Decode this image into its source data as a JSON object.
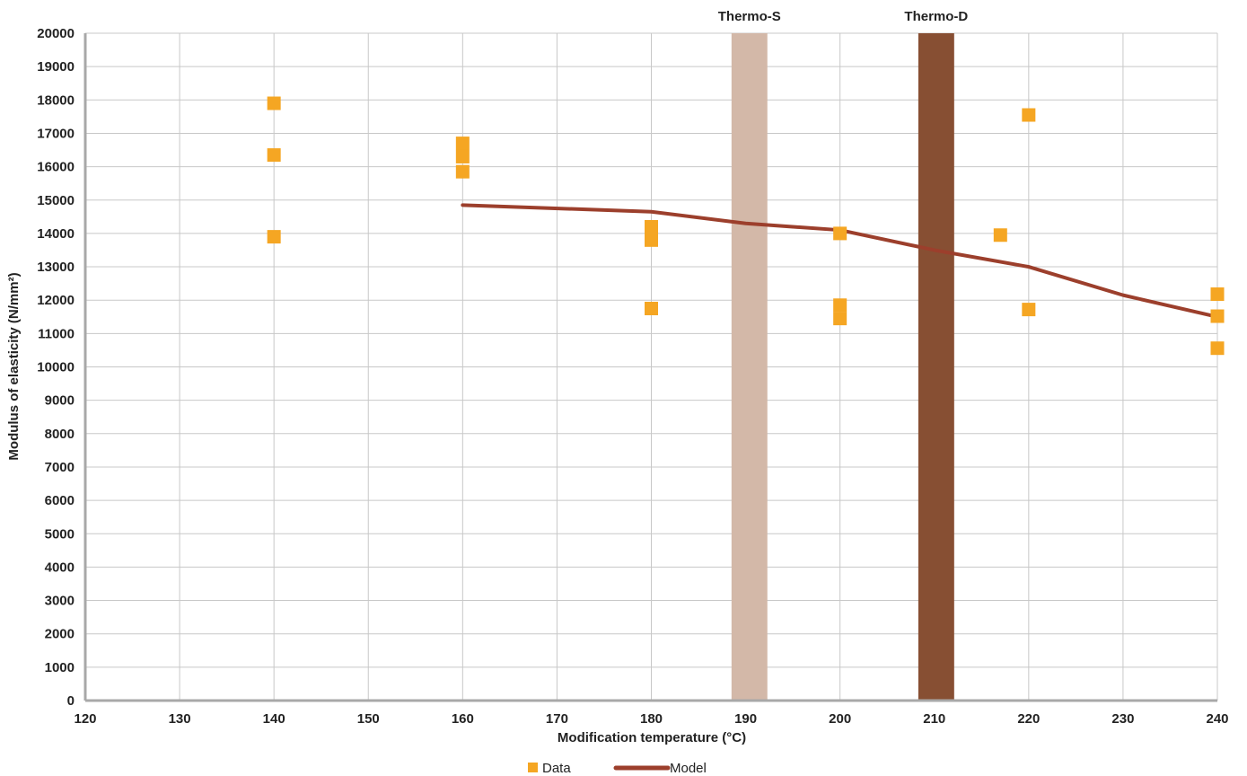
{
  "chart_data": {
    "type": "scatter",
    "xlabel": "Modification temperature (°C)",
    "ylabel": "Modulus of elasticity (N/mm²)",
    "xlim": [
      120,
      240
    ],
    "ylim": [
      0,
      20000
    ],
    "x_ticks": [
      "120",
      "130",
      "140",
      "150",
      "160",
      "170",
      "180",
      "190",
      "200",
      "210",
      "220",
      "230",
      "240"
    ],
    "y_ticks": [
      "0",
      "1000",
      "2000",
      "3000",
      "4000",
      "5000",
      "6000",
      "7000",
      "8000",
      "9000",
      "10000",
      "11000",
      "12000",
      "13000",
      "14000",
      "15000",
      "16000",
      "17000",
      "18000",
      "19000",
      "20000"
    ],
    "grid": true,
    "bands": [
      {
        "label": "Thermo-S",
        "x_from": 188.5,
        "x_to": 192.3,
        "color": "#d3b8a8"
      },
      {
        "label": "Thermo-D",
        "x_from": 208.3,
        "x_to": 212.1,
        "color": "#874f33"
      }
    ],
    "series": [
      {
        "name": "Data",
        "kind": "scatter",
        "color": "#f5a623",
        "points": [
          {
            "x": 140,
            "y": 17900
          },
          {
            "x": 140,
            "y": 16350
          },
          {
            "x": 140,
            "y": 13900
          },
          {
            "x": 160,
            "y": 16700
          },
          {
            "x": 160,
            "y": 16300
          },
          {
            "x": 160,
            "y": 15850
          },
          {
            "x": 180,
            "y": 14200
          },
          {
            "x": 180,
            "y": 13800
          },
          {
            "x": 180,
            "y": 11750
          },
          {
            "x": 200,
            "y": 14000
          },
          {
            "x": 200,
            "y": 11850
          },
          {
            "x": 200,
            "y": 11450
          },
          {
            "x": 217,
            "y": 13950
          },
          {
            "x": 220,
            "y": 17550
          },
          {
            "x": 220,
            "y": 11720
          },
          {
            "x": 240,
            "y": 12180
          },
          {
            "x": 240,
            "y": 11520
          },
          {
            "x": 240,
            "y": 10560
          }
        ]
      },
      {
        "name": "Model",
        "kind": "line",
        "color": "#9c3f2c",
        "points": [
          {
            "x": 160,
            "y": 14850
          },
          {
            "x": 180,
            "y": 14650
          },
          {
            "x": 190,
            "y": 14300
          },
          {
            "x": 200,
            "y": 14100
          },
          {
            "x": 210,
            "y": 13500
          },
          {
            "x": 220,
            "y": 13000
          },
          {
            "x": 230,
            "y": 12150
          },
          {
            "x": 240,
            "y": 11500
          }
        ]
      }
    ],
    "legend": {
      "position": "bottom-center"
    }
  }
}
